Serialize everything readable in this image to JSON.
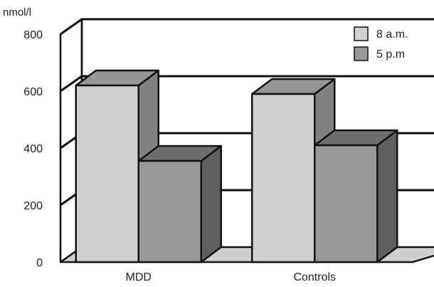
{
  "chart_data": {
    "type": "bar",
    "title": "",
    "xlabel": "",
    "ylabel": "nmol/l",
    "ylim": [
      0,
      800
    ],
    "yticks": [
      0,
      200,
      400,
      600,
      800
    ],
    "categories": [
      "MDD",
      "Controls"
    ],
    "series": [
      {
        "name": "8 a.m.",
        "values": [
          620,
          590
        ],
        "color": "#d0d0d0"
      },
      {
        "name": "5 p.m",
        "values": [
          355,
          410
        ],
        "color": "#999999"
      }
    ],
    "style": "3d-bar",
    "grid": true,
    "legend": "top-right"
  },
  "colors": {
    "wall": "#ffffff",
    "floor": "#cfcfcf",
    "outline": "#111111",
    "text": "#222222"
  }
}
